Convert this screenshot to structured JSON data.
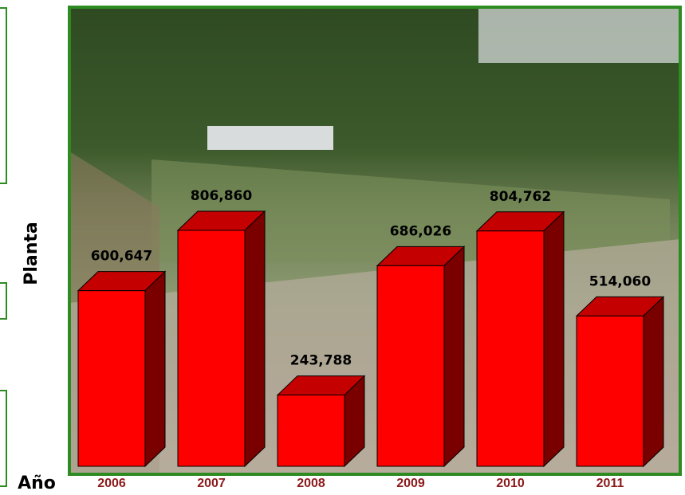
{
  "chart_data": {
    "type": "bar3d",
    "categories": [
      "2006",
      "2007",
      "2008",
      "2009",
      "2010",
      "2011"
    ],
    "values": [
      600647,
      806860,
      243788,
      686026,
      804762,
      514060
    ],
    "value_labels": [
      "600,647",
      "806,860",
      "243,788",
      "686,026",
      "804,762",
      "514,060"
    ],
    "color": "#ff0000",
    "y_label": "Planta",
    "x_label": "Año"
  }
}
